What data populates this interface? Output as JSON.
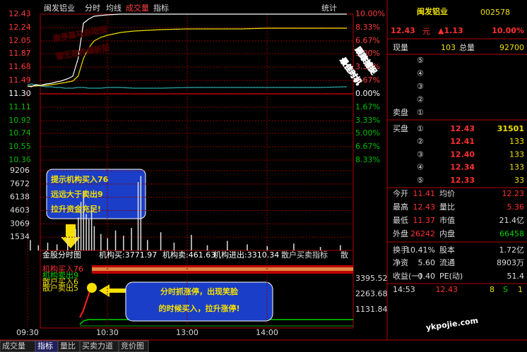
{
  "header": {
    "stock": "闽发铝业",
    "tabs": [
      "分时",
      "均线",
      "成交量",
      "指标"
    ],
    "stat": "统计"
  },
  "price_chart": {
    "xlim": [
      0,
      240
    ],
    "ylim": [
      10.17,
      12.43
    ],
    "yticks": [
      12.43,
      12.24,
      12.05,
      11.87,
      11.68,
      11.49,
      {
        "value": 11.3,
        "label": "11.30"
      },
      11.11,
      10.92,
      10.74,
      10.55,
      10.36
    ],
    "pct_labels": [
      "10.00%",
      "8.33%",
      "6.67%",
      "5.00%",
      "3.33%",
      "1.67%",
      "0.00%",
      "1.67%",
      "3.33%",
      "5.00%",
      "6.67%",
      "8.33%"
    ],
    "xticks": [
      {
        "value": 0,
        "label": "09:30"
      },
      {
        "value": 60,
        "label": "10:30"
      },
      {
        "value": 120,
        "label": "13:00"
      },
      {
        "value": 180,
        "label": "14:00"
      }
    ],
    "x": [
      0,
      3,
      6,
      10,
      14,
      18,
      22,
      25,
      28,
      31,
      34,
      38,
      42,
      46,
      50,
      55,
      60,
      70,
      80,
      90,
      100,
      120,
      140,
      160,
      180,
      200,
      220,
      240
    ],
    "price": [
      11.41,
      11.4,
      11.43,
      11.42,
      11.44,
      11.45,
      11.47,
      11.48,
      11.5,
      11.52,
      11.55,
      11.8,
      12.3,
      12.36,
      12.4,
      12.41,
      12.42,
      12.43,
      12.43,
      12.43,
      12.43,
      12.43,
      12.43,
      12.43,
      12.43,
      12.43,
      12.43,
      12.43
    ],
    "avg": [
      11.41,
      11.41,
      11.41,
      11.42,
      11.42,
      11.43,
      11.44,
      11.45,
      11.46,
      11.47,
      11.48,
      11.55,
      11.8,
      11.95,
      12.05,
      12.1,
      12.13,
      12.17,
      12.19,
      12.2,
      12.21,
      12.22,
      12.22,
      12.22,
      12.23,
      12.23,
      12.23,
      12.23
    ],
    "index_line": [
      11.43,
      11.44,
      11.42,
      11.41,
      11.4,
      11.4,
      11.39,
      11.39,
      11.38,
      11.38,
      11.38,
      11.39,
      11.39,
      11.38,
      11.38,
      11.38,
      11.39,
      11.39,
      11.38,
      11.38,
      11.38,
      11.39,
      11.39,
      11.39,
      11.39,
      11.39,
      11.39,
      11.4
    ]
  },
  "volume": {
    "ylim": [
      0,
      9206
    ],
    "yticks": [
      9206,
      7672,
      6138,
      4603,
      3069,
      1534
    ],
    "x": [
      2,
      8,
      15,
      22,
      30,
      36,
      38,
      40,
      42,
      44,
      46,
      48,
      50,
      55,
      60,
      66,
      72,
      78,
      83,
      85,
      90,
      100,
      110,
      123,
      135,
      150,
      165,
      180,
      200,
      220,
      235
    ],
    "values": [
      1200,
      600,
      900,
      700,
      1500,
      2500,
      3800,
      5600,
      6900,
      4200,
      3600,
      5100,
      2800,
      1900,
      1400,
      2300,
      1700,
      2600,
      7900,
      8600,
      1200,
      2100,
      900,
      1800,
      600,
      1100,
      700,
      500,
      800,
      400,
      600
    ]
  },
  "indicator": {
    "title": "金股分时图",
    "items": [
      "机构买:3771.97",
      "机构卖:461.63",
      "机构进出:3310.34",
      "散户买卖指标",
      "散"
    ],
    "legend": [
      "机构买入76",
      "机构卖出9",
      "散户买入6",
      "散户卖出5"
    ],
    "axis_labels": [
      "3395.52",
      "2263.68",
      "1131.84"
    ]
  },
  "annotations": {
    "box1": [
      "提示机构买入76",
      "远远大于卖出9",
      "拉升资金充足!"
    ],
    "box2": [
      "分时抓涨停，出现笑脸",
      "的时候买入，拉升涨停!"
    ],
    "overlay1": [
      "涨停黑马启动预",
      "警王软件最新版"
    ],
    "overlay2": [
      "跟踪捕捉",
      "最佳时机"
    ],
    "watermark": "ykpojie.com"
  },
  "quote": {
    "name": "闽发铝业",
    "code": "002578",
    "price": "12.43",
    "unit": "元",
    "change": "▲1.13",
    "pct": "10.00%",
    "volume_row": [
      "现量",
      "103",
      "总量",
      "92700"
    ],
    "sell_marks": [
      "⑤",
      "④",
      "③",
      "②",
      "①"
    ],
    "sell_label": "卖盘",
    "buy_label": "买盘",
    "buy": [
      [
        "①",
        "12.43",
        "31501"
      ],
      [
        "②",
        "12.41",
        "133"
      ],
      [
        "③",
        "12.40",
        "133"
      ],
      [
        "④",
        "12.34",
        "133"
      ],
      [
        "⑤",
        "12.33",
        "33"
      ]
    ],
    "stats": [
      [
        "今开",
        "11.41",
        "均价",
        "12.23"
      ],
      [
        "最高",
        "12.43",
        "量比",
        "5.36"
      ],
      [
        "最低",
        "11.37",
        "市值",
        "21.4亿"
      ],
      [
        "外盘",
        "26242",
        "内盘",
        "66458"
      ],
      [
        "换手",
        "10.41%",
        "股本",
        "1.72亿"
      ],
      [
        "净资",
        "5.60",
        "流通",
        "8903万"
      ],
      [
        "收益(一)",
        "0.40",
        "PE(动)",
        "51.4"
      ]
    ],
    "trade": [
      "14:53",
      "12.43",
      "8",
      "S",
      "1"
    ]
  },
  "tabs": [
    "成交量",
    "指标",
    "量比",
    "买卖力道",
    "竞价图"
  ]
}
